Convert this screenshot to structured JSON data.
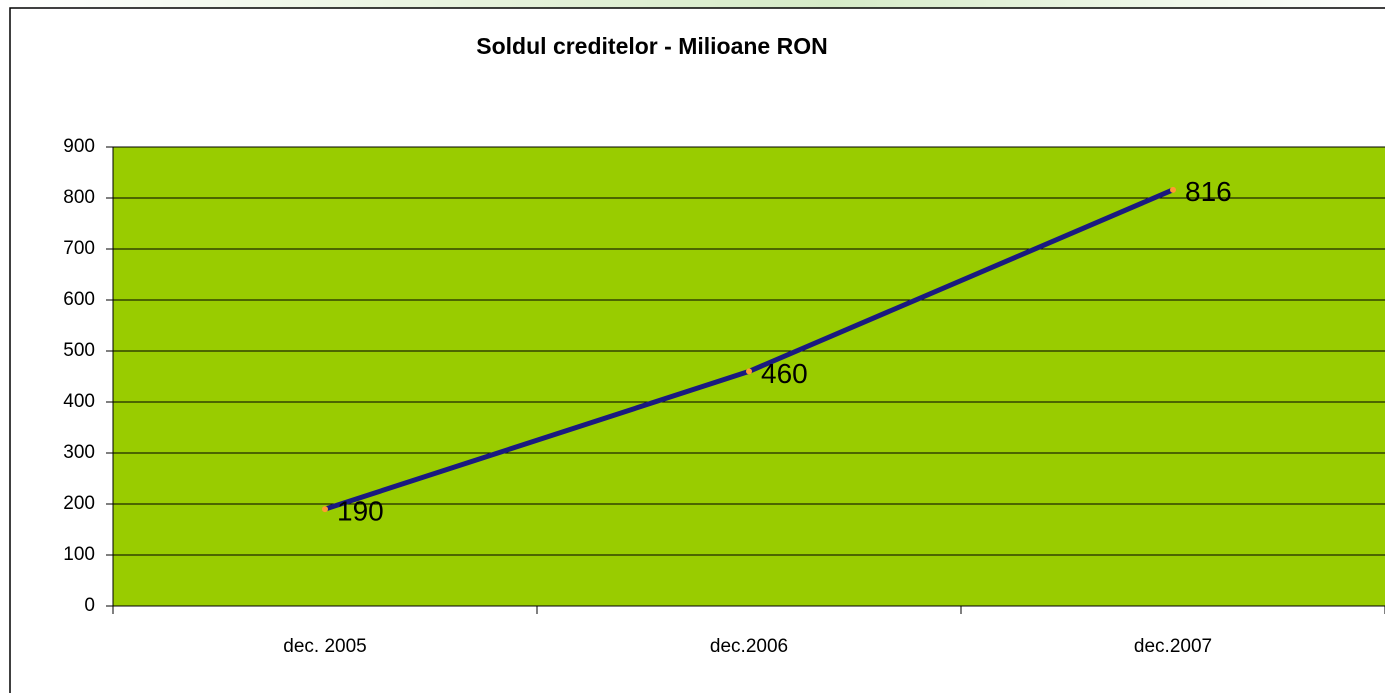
{
  "chart_data": {
    "type": "line",
    "title": "Soldul creditelor - Milioane RON",
    "categories": [
      "dec. 2005",
      "dec.2006",
      "dec.2007"
    ],
    "series": [
      {
        "name": "Soldul creditelor",
        "color": "#1a1a80",
        "marker_color": "#ff9933",
        "values": [
          190,
          460,
          816
        ]
      }
    ],
    "ylim": [
      0,
      900
    ],
    "yticks": [
      0,
      100,
      200,
      300,
      400,
      500,
      600,
      700,
      800,
      900
    ],
    "grid": true,
    "plot_background": "#99cc00",
    "data_labels": true
  }
}
